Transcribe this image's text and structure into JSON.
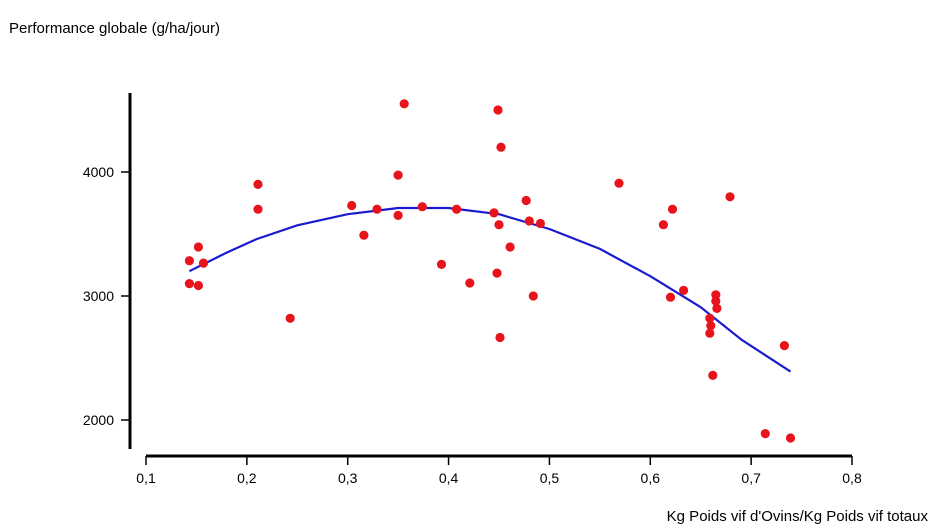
{
  "chart_data": {
    "type": "scatter",
    "title": "Performance globale (g/ha/jour)",
    "xlabel": "Kg Poids vif d'Ovins/Kg Poids vif totaux",
    "ylabel": "",
    "xlim": [
      0.1,
      0.8
    ],
    "ylim": [
      1800,
      4650
    ],
    "x_ticks": [
      0.1,
      0.2,
      0.3,
      0.4,
      0.5,
      0.6,
      0.7,
      0.8
    ],
    "x_tick_labels": [
      "0,1",
      "0,2",
      "0,3",
      "0,4",
      "0,5",
      "0,6",
      "0,7",
      "0,8"
    ],
    "y_ticks": [
      2000,
      3000,
      4000
    ],
    "y_tick_labels": [
      "2000",
      "3000",
      "4000"
    ],
    "grid": false,
    "legend": "none",
    "colors": {
      "points": "#e8141c",
      "trend": "#1a1ad0",
      "axes": "#000000"
    },
    "series": [
      {
        "type": "scatter",
        "points": [
          {
            "x": 0.143,
            "y": 3285
          },
          {
            "x": 0.143,
            "y": 3100
          },
          {
            "x": 0.152,
            "y": 3395
          },
          {
            "x": 0.152,
            "y": 3085
          },
          {
            "x": 0.157,
            "y": 3265
          },
          {
            "x": 0.211,
            "y": 3900
          },
          {
            "x": 0.211,
            "y": 3700
          },
          {
            "x": 0.243,
            "y": 2820
          },
          {
            "x": 0.304,
            "y": 3730
          },
          {
            "x": 0.316,
            "y": 3490
          },
          {
            "x": 0.329,
            "y": 3700
          },
          {
            "x": 0.35,
            "y": 3975
          },
          {
            "x": 0.35,
            "y": 3650
          },
          {
            "x": 0.356,
            "y": 4550
          },
          {
            "x": 0.374,
            "y": 3720
          },
          {
            "x": 0.393,
            "y": 3255
          },
          {
            "x": 0.408,
            "y": 3700
          },
          {
            "x": 0.421,
            "y": 3105
          },
          {
            "x": 0.445,
            "y": 3670
          },
          {
            "x": 0.448,
            "y": 3185
          },
          {
            "x": 0.449,
            "y": 4500
          },
          {
            "x": 0.45,
            "y": 3575
          },
          {
            "x": 0.451,
            "y": 2665
          },
          {
            "x": 0.452,
            "y": 4200
          },
          {
            "x": 0.461,
            "y": 3395
          },
          {
            "x": 0.477,
            "y": 3770
          },
          {
            "x": 0.48,
            "y": 3605
          },
          {
            "x": 0.484,
            "y": 3000
          },
          {
            "x": 0.491,
            "y": 3585
          },
          {
            "x": 0.569,
            "y": 3910
          },
          {
            "x": 0.613,
            "y": 3575
          },
          {
            "x": 0.62,
            "y": 2990
          },
          {
            "x": 0.622,
            "y": 3700
          },
          {
            "x": 0.633,
            "y": 3045
          },
          {
            "x": 0.659,
            "y": 2820
          },
          {
            "x": 0.659,
            "y": 2700
          },
          {
            "x": 0.66,
            "y": 2760
          },
          {
            "x": 0.662,
            "y": 2360
          },
          {
            "x": 0.665,
            "y": 3010
          },
          {
            "x": 0.665,
            "y": 2960
          },
          {
            "x": 0.666,
            "y": 2900
          },
          {
            "x": 0.679,
            "y": 3800
          },
          {
            "x": 0.714,
            "y": 1890
          },
          {
            "x": 0.733,
            "y": 2600
          },
          {
            "x": 0.739,
            "y": 1855
          }
        ]
      },
      {
        "type": "line",
        "x": [
          0.143,
          0.18,
          0.21,
          0.25,
          0.3,
          0.35,
          0.4,
          0.45,
          0.5,
          0.55,
          0.6,
          0.65,
          0.69,
          0.739
        ],
        "y": [
          3200,
          3350,
          3460,
          3570,
          3660,
          3710,
          3710,
          3660,
          3540,
          3380,
          3160,
          2910,
          2650,
          2390
        ]
      }
    ]
  }
}
